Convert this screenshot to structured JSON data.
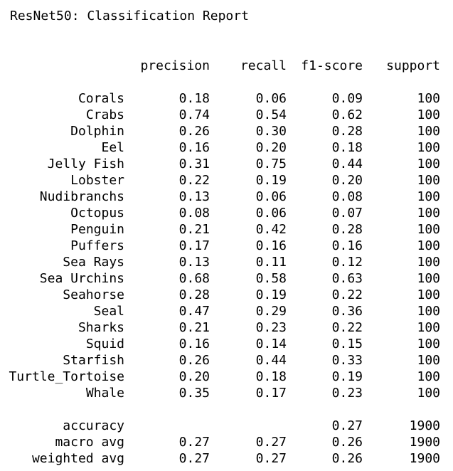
{
  "title": "ResNet50: Classification Report",
  "columns": {
    "precision": "precision",
    "recall": "recall",
    "f1": "f1-score",
    "support": "support"
  },
  "rows": [
    {
      "label": "Corals",
      "precision": "0.18",
      "recall": "0.06",
      "f1": "0.09",
      "support": "100"
    },
    {
      "label": "Crabs",
      "precision": "0.74",
      "recall": "0.54",
      "f1": "0.62",
      "support": "100"
    },
    {
      "label": "Dolphin",
      "precision": "0.26",
      "recall": "0.30",
      "f1": "0.28",
      "support": "100"
    },
    {
      "label": "Eel",
      "precision": "0.16",
      "recall": "0.20",
      "f1": "0.18",
      "support": "100"
    },
    {
      "label": "Jelly Fish",
      "precision": "0.31",
      "recall": "0.75",
      "f1": "0.44",
      "support": "100"
    },
    {
      "label": "Lobster",
      "precision": "0.22",
      "recall": "0.19",
      "f1": "0.20",
      "support": "100"
    },
    {
      "label": "Nudibranchs",
      "precision": "0.13",
      "recall": "0.06",
      "f1": "0.08",
      "support": "100"
    },
    {
      "label": "Octopus",
      "precision": "0.08",
      "recall": "0.06",
      "f1": "0.07",
      "support": "100"
    },
    {
      "label": "Penguin",
      "precision": "0.21",
      "recall": "0.42",
      "f1": "0.28",
      "support": "100"
    },
    {
      "label": "Puffers",
      "precision": "0.17",
      "recall": "0.16",
      "f1": "0.16",
      "support": "100"
    },
    {
      "label": "Sea Rays",
      "precision": "0.13",
      "recall": "0.11",
      "f1": "0.12",
      "support": "100"
    },
    {
      "label": "Sea Urchins",
      "precision": "0.68",
      "recall": "0.58",
      "f1": "0.63",
      "support": "100"
    },
    {
      "label": "Seahorse",
      "precision": "0.28",
      "recall": "0.19",
      "f1": "0.22",
      "support": "100"
    },
    {
      "label": "Seal",
      "precision": "0.47",
      "recall": "0.29",
      "f1": "0.36",
      "support": "100"
    },
    {
      "label": "Sharks",
      "precision": "0.21",
      "recall": "0.23",
      "f1": "0.22",
      "support": "100"
    },
    {
      "label": "Squid",
      "precision": "0.16",
      "recall": "0.14",
      "f1": "0.15",
      "support": "100"
    },
    {
      "label": "Starfish",
      "precision": "0.26",
      "recall": "0.44",
      "f1": "0.33",
      "support": "100"
    },
    {
      "label": "Turtle_Tortoise",
      "precision": "0.20",
      "recall": "0.18",
      "f1": "0.19",
      "support": "100"
    },
    {
      "label": "Whale",
      "precision": "0.35",
      "recall": "0.17",
      "f1": "0.23",
      "support": "100"
    }
  ],
  "summary": [
    {
      "label": "accuracy",
      "precision": "",
      "recall": "",
      "f1": "0.27",
      "support": "1900"
    },
    {
      "label": "macro avg",
      "precision": "0.27",
      "recall": "0.27",
      "f1": "0.26",
      "support": "1900"
    },
    {
      "label": "weighted avg",
      "precision": "0.27",
      "recall": "0.27",
      "f1": "0.26",
      "support": "1900"
    }
  ]
}
